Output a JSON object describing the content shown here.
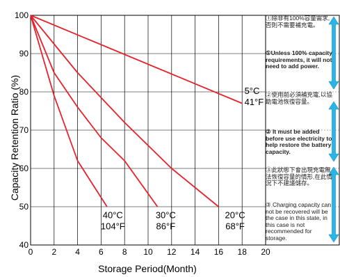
{
  "chart_data": {
    "type": "line",
    "xlabel": "Storage Period(Month)",
    "ylabel": "Capacity Retention Ratio (%)",
    "xlim": [
      0,
      20
    ],
    "ylim": [
      40,
      100
    ],
    "xticks": [
      "0",
      "2",
      "4",
      "6",
      "8",
      "10",
      "12",
      "14",
      "16",
      "18",
      "20"
    ],
    "yticks": [
      "40",
      "50",
      "60",
      "70",
      "80",
      "90",
      "100"
    ],
    "grid": true,
    "line_color": "#e8202a",
    "series": [
      {
        "label_line1": "5°C",
        "label_line2": "41°F",
        "points": [
          [
            0,
            100
          ],
          [
            18,
            77
          ]
        ]
      },
      {
        "label_line1": "20°C",
        "label_line2": "68°F",
        "points": [
          [
            0,
            100
          ],
          [
            4,
            85
          ],
          [
            8,
            72
          ],
          [
            12,
            60
          ],
          [
            16,
            50
          ]
        ]
      },
      {
        "label_line1": "30°C",
        "label_line2": "86°F",
        "points": [
          [
            0,
            100
          ],
          [
            2,
            85
          ],
          [
            4,
            76
          ],
          [
            6,
            68
          ],
          [
            8,
            62
          ],
          [
            10.8,
            50
          ]
        ]
      },
      {
        "label_line1": "40°C",
        "label_line2": "104°F",
        "points": [
          [
            0,
            100
          ],
          [
            2,
            79
          ],
          [
            4,
            62
          ],
          [
            6.5,
            50
          ]
        ]
      }
    ]
  },
  "notes": [
    {
      "id": "note-1-zh",
      "text": "①除非有100%容量需求,否則不需要補充電。"
    },
    {
      "id": "note-1-en",
      "text": "①Unless 100% capacity requirements, it will not need to add power."
    },
    {
      "id": "note-2-zh",
      "text": "②使用前必須補充電,以協助電池恢復容量。"
    },
    {
      "id": "note-2-en",
      "text": "② It must be added before use electricity to help restore the battery capacity."
    },
    {
      "id": "note-3-zh",
      "text": "③此狀態下會出現充電無法恢復容量的情形,在此情況下不建議儲存。"
    },
    {
      "id": "note-3-en",
      "text": "③ Charging capacity can not be recovered will be the case in this state, in this case is not recommended for storage."
    }
  ],
  "colors": {
    "arrow": "#29b6e6",
    "grid": "#000000",
    "line": "#e8202a"
  }
}
